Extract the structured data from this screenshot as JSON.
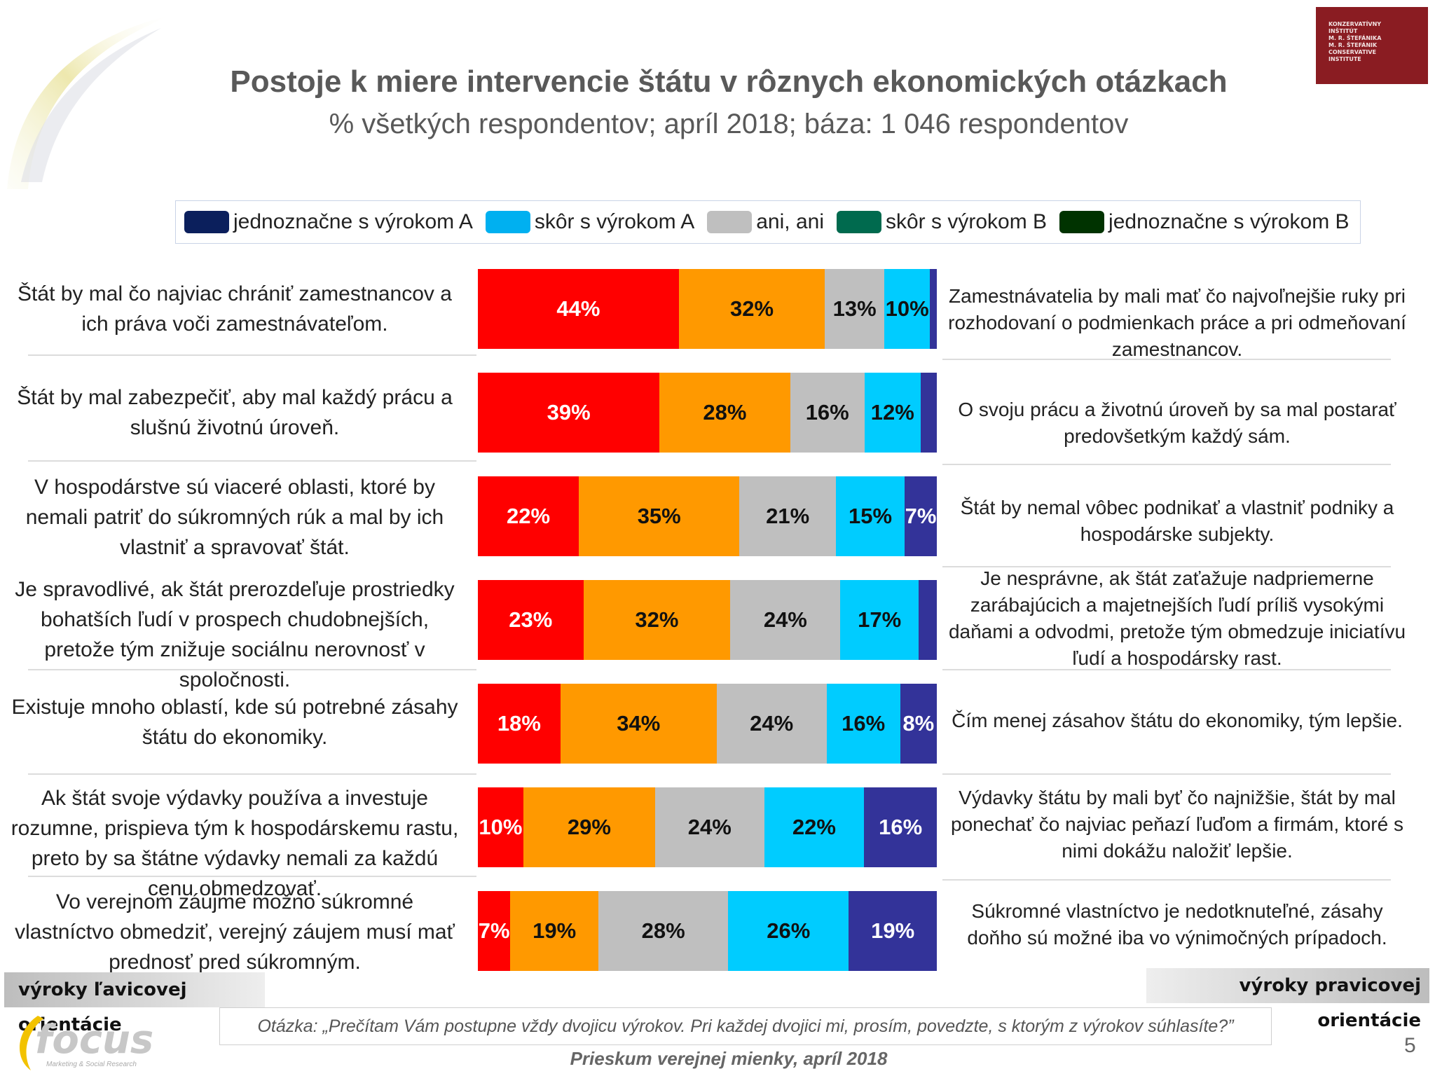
{
  "header": {
    "title": "Postoje k miere intervencie štátu v rôznych ekonomických otázkach",
    "subtitle": "% všetkých respondentov; apríl 2018; báza: 1 046 respondentov"
  },
  "legend": [
    {
      "label": "jednoznačne s výrokom A",
      "color": "#002060"
    },
    {
      "label": "skôr s výrokom A",
      "color": "#00b0f0"
    },
    {
      "label": "ani, ani",
      "color": "#bfbfbf"
    },
    {
      "label": "skôr s výrokom B",
      "color": "#006a4e"
    },
    {
      "label": "jednoznačne s výrokom B",
      "color": "#003300"
    }
  ],
  "chart_data": {
    "type": "bar",
    "orientation": "horizontal-stacked-100",
    "segment_colors": [
      "#ff0000",
      "#ff9900",
      "#bfbfbf",
      "#00ccff",
      "#333399"
    ],
    "rows": [
      {
        "left": "Štát by mal čo najviac chrániť zamestnancov a ich práva voči zamestnávateľom.",
        "right": "Zamestnávatelia by mali mať čo najvoľnejšie ruky pri rozhodovaní o podmienkach práce a pri odmeňovaní zamestnancov.",
        "values": [
          44,
          32,
          13,
          10,
          1.5
        ],
        "labels": [
          "44%",
          "32%",
          "13%",
          "10%",
          ""
        ]
      },
      {
        "left": "Štát by mal zabezpečiť, aby mal každý prácu a slušnú životnú úroveň.",
        "right": "O svoju prácu a životnú úroveň by sa mal postarať predovšetkým každý sám.",
        "values": [
          39,
          28,
          16,
          12,
          3.5
        ],
        "labels": [
          "39%",
          "28%",
          "16%",
          "12%",
          ""
        ]
      },
      {
        "left": "V hospodárstve sú viaceré oblasti, ktoré by nemali patriť do súkromných rúk a mal by ich vlastniť a spravovať štát.",
        "right": "Štát by nemal vôbec podnikať a vlastniť podniky a hospodárske subjekty.",
        "values": [
          22,
          35,
          21,
          15,
          7
        ],
        "labels": [
          "22%",
          "35%",
          "21%",
          "15%",
          "7%"
        ]
      },
      {
        "left": "Je spravodlivé, ak štát prerozdeľuje prostriedky bohatších ľudí v prospech chudobnejších, pretože tým znižuje sociálnu nerovnosť v spoločnosti.",
        "right": "Je nesprávne, ak štát zaťažuje nadpriemerne zarábajúcich a majetnejších ľudí príliš vysokými daňami a odvodmi, pretože tým obmedzuje iniciatívu ľudí a hospodársky rast.",
        "values": [
          23,
          32,
          24,
          17,
          4
        ],
        "labels": [
          "23%",
          "32%",
          "24%",
          "17%",
          ""
        ]
      },
      {
        "left": "Existuje mnoho oblastí, kde sú potrebné zásahy štátu do ekonomiky.",
        "right": "Čím menej zásahov štátu do ekonomiky, tým lepšie.",
        "values": [
          18,
          34,
          24,
          16,
          8
        ],
        "labels": [
          "18%",
          "34%",
          "24%",
          "16%",
          "8%"
        ]
      },
      {
        "left": "Ak štát svoje výdavky používa a investuje rozumne, prispieva tým k hospodárskemu rastu, preto by sa štátne výdavky nemali za každú cenu obmedzovať.",
        "right": "Výdavky štátu by mali byť čo najnižšie, štát by mal ponechať čo najviac peňazí ľuďom a firmám, ktoré s nimi dokážu naložiť lepšie.",
        "values": [
          10,
          29,
          24,
          22,
          16
        ],
        "labels": [
          "10%",
          "29%",
          "24%",
          "22%",
          "16%"
        ]
      },
      {
        "left": "Vo verejnom záujme možno súkromné vlastníctvo obmedziť, verejný záujem musí mať prednosť pred súkromným.",
        "right": "Súkromné vlastníctvo je nedotknuteľné, zásahy doňho sú možné iba vo výnimočných prípadoch.",
        "values": [
          7,
          19,
          28,
          26,
          19
        ],
        "labels": [
          "7%",
          "19%",
          "28%",
          "26%",
          "19%"
        ]
      }
    ]
  },
  "tags": {
    "left": "výroky ľavicovej orientácie",
    "right": "výroky pravicovej orientácie"
  },
  "question": "Otázka: „Prečítam Vám postupne vždy dvojicu výrokov. Pri každej dvojici mi, prosím, povedzte, s ktorým z výrokov súhlasíte?”",
  "footer": "Prieskum verejnej mienky, apríl 2018",
  "page_number": "5",
  "logo": {
    "institute_lines": [
      "KONZERVATÍVNY",
      "INŠTITÚT",
      "M. R. ŠTEFÁNIKA",
      "M. R. ŠTEFÁNIK",
      "CONSERVATIVE",
      "INSTITUTE"
    ],
    "focus_name": "focus",
    "focus_tagline": "Marketing & Social Research"
  }
}
